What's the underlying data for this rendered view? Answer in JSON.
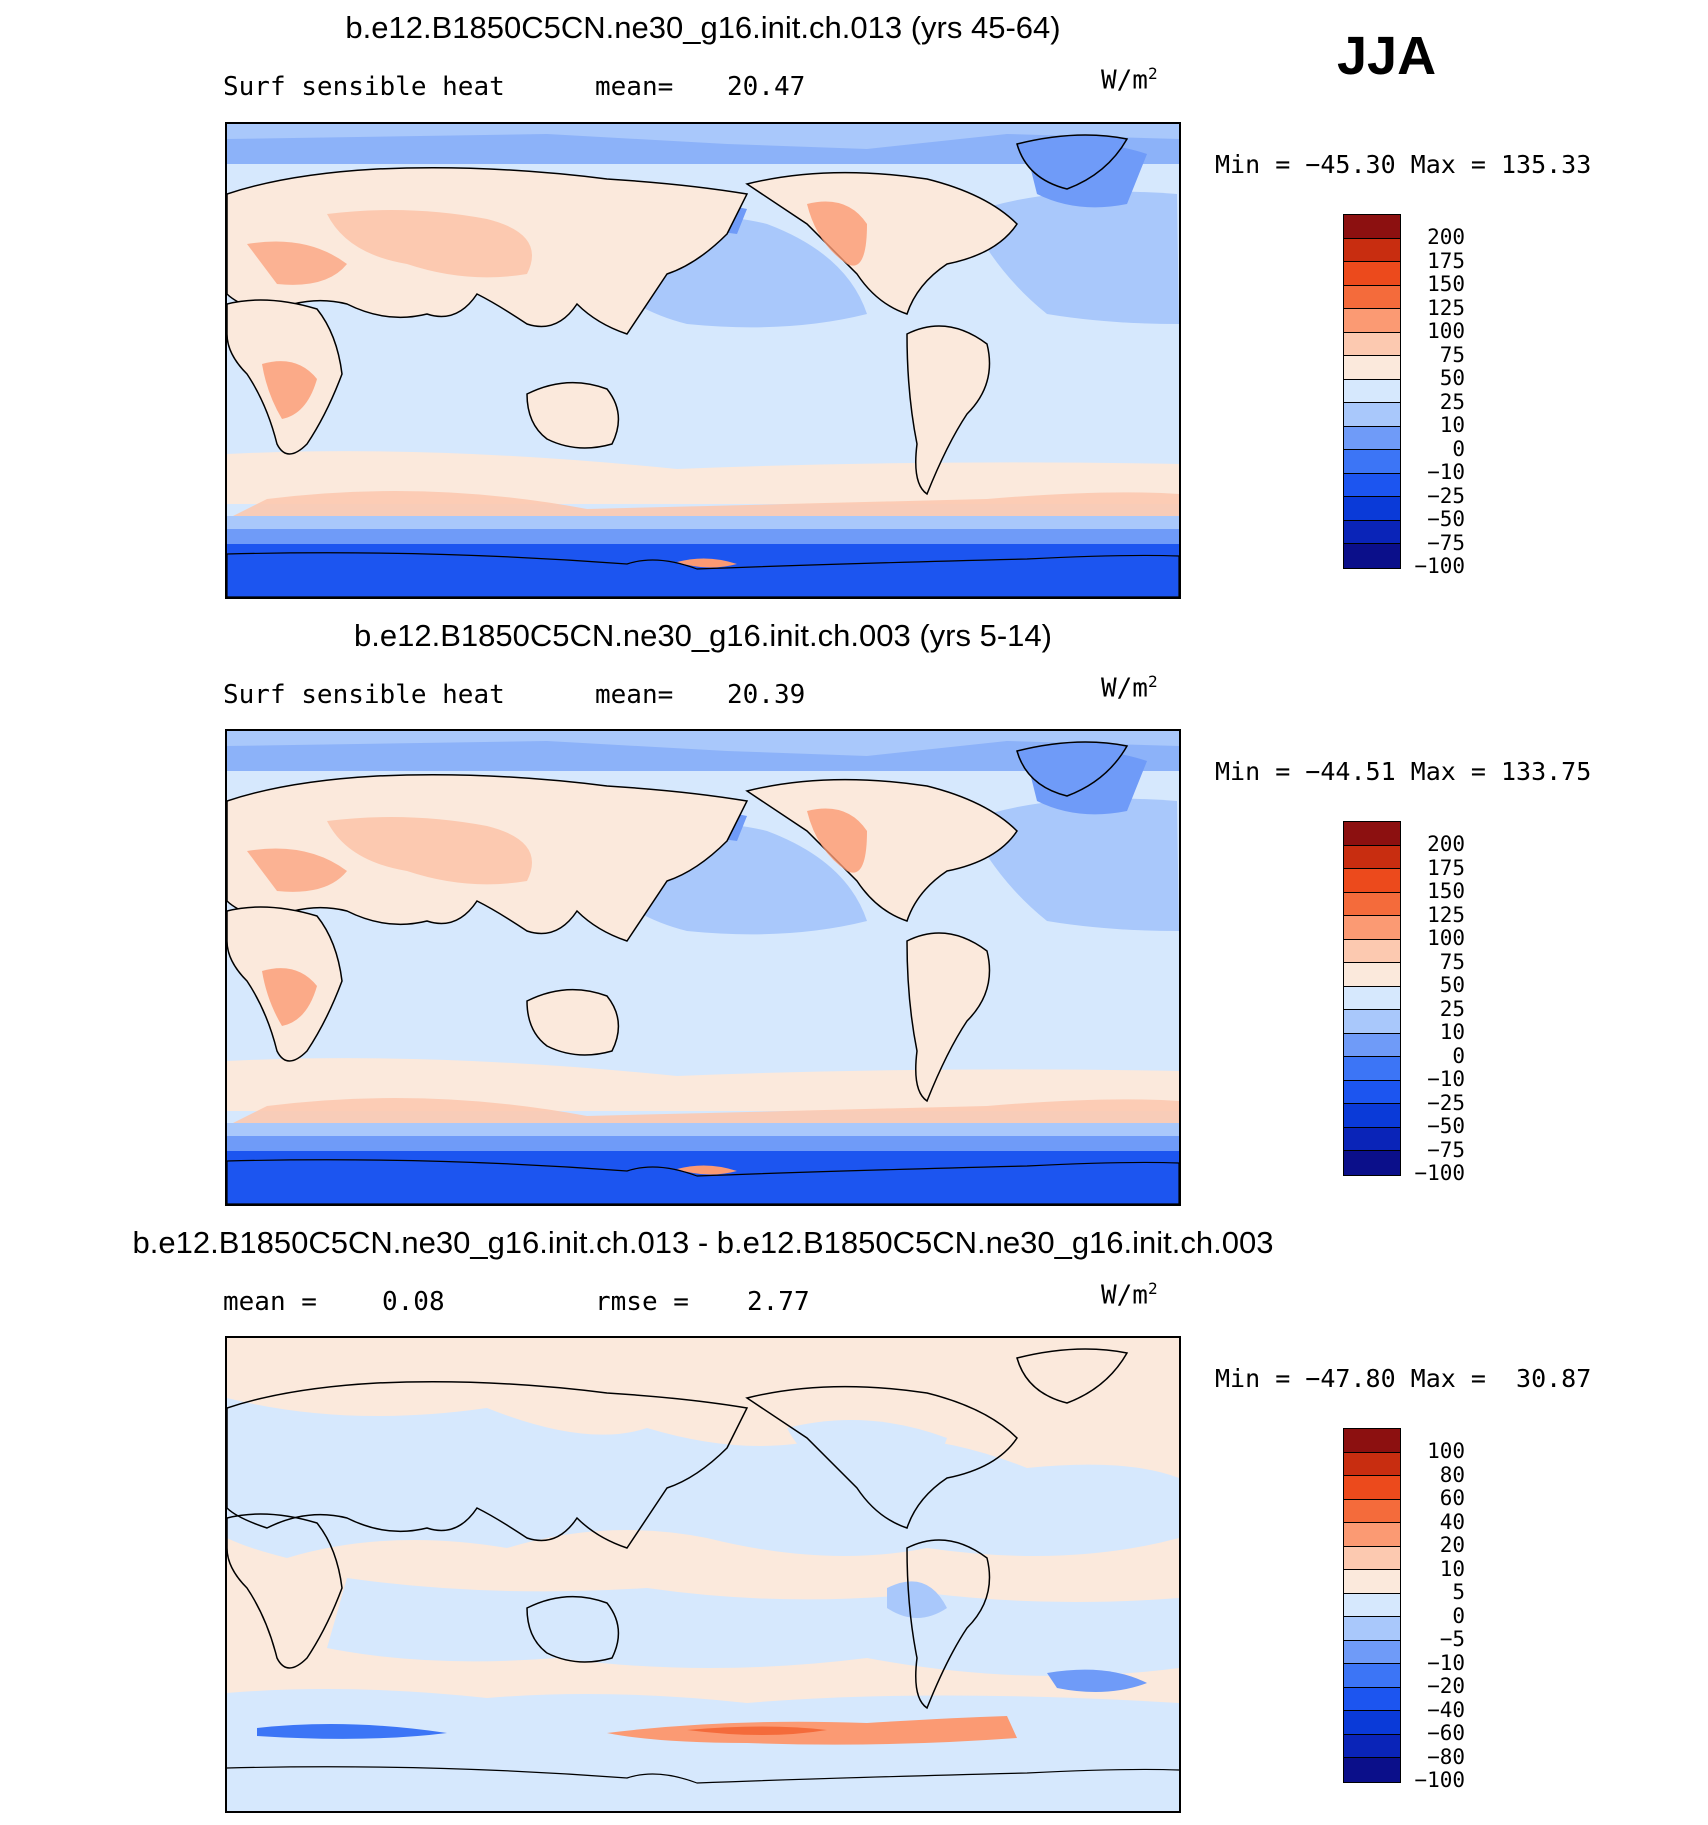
{
  "season": "JJA",
  "colors": {
    "abs_scale": [
      "#0b0f8a",
      "#0a24b8",
      "#0a3ad8",
      "#1c55f0",
      "#3c75f6",
      "#6f9bf8",
      "#a9c8fb",
      "#d6e8fd",
      "#fbe9dc",
      "#fcc9b0",
      "#fb9a73",
      "#f46b3b",
      "#ec4a1c",
      "#c82d10",
      "#8c1010"
    ],
    "diff_scale": [
      "#0b0f8a",
      "#0a24b8",
      "#0a3ad8",
      "#1c55f0",
      "#3c75f6",
      "#6f9bf8",
      "#a9c8fb",
      "#d6e8fd",
      "#fbe9dc",
      "#fcc9b0",
      "#fb9a73",
      "#f46b3b",
      "#ec4a1c",
      "#c82d10",
      "#8c1010"
    ]
  },
  "panels": [
    {
      "title": "b.e12.B1850C5CN.ne30_g16.init.ch.013 (yrs 45-64)",
      "left_label": "Surf sensible heat",
      "stat_label": "mean=",
      "stat_value": "20.47",
      "units": "W/m",
      "units_sup": "2",
      "minmax": "Min = −45.30 Max = 135.33",
      "ticks": [
        "200",
        "175",
        "150",
        "125",
        "100",
        "75",
        "50",
        "25",
        "10",
        "0",
        "−10",
        "−25",
        "−50",
        "−75",
        "−100"
      ]
    },
    {
      "title": "b.e12.B1850C5CN.ne30_g16.init.ch.003 (yrs 5-14)",
      "left_label": "Surf sensible heat",
      "stat_label": "mean=",
      "stat_value": "20.39",
      "units": "W/m",
      "units_sup": "2",
      "minmax": "Min = −44.51 Max = 133.75",
      "ticks": [
        "200",
        "175",
        "150",
        "125",
        "100",
        "75",
        "50",
        "25",
        "10",
        "0",
        "−10",
        "−25",
        "−50",
        "−75",
        "−100"
      ]
    },
    {
      "title": "b.e12.B1850C5CN.ne30_g16.init.ch.013 - b.e12.B1850C5CN.ne30_g16.init.ch.003",
      "left_label": "mean =",
      "left_value": "0.08",
      "stat_label": "rmse =",
      "stat_value": "2.77",
      "units": "W/m",
      "units_sup": "2",
      "minmax": "Min = −47.80 Max =  30.87",
      "ticks": [
        "100",
        "80",
        "60",
        "40",
        "20",
        "10",
        "5",
        "0",
        "−5",
        "−10",
        "−20",
        "−40",
        "−60",
        "−80",
        "−100"
      ]
    }
  ]
}
